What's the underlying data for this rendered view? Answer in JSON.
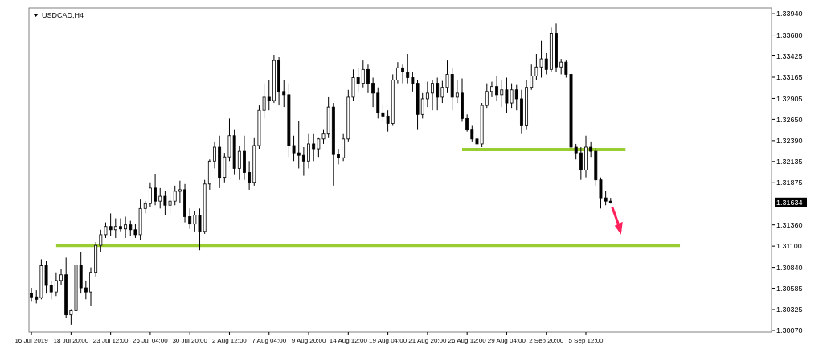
{
  "chart_data": {
    "type": "candlestick",
    "title": "USDCAD,H4",
    "categories": [
      "16 Jul 2019",
      null,
      null,
      null,
      null,
      null,
      null,
      null,
      "18 Jul 20:00",
      null,
      null,
      null,
      null,
      null,
      null,
      null,
      "23 Jul 12:00",
      null,
      null,
      null,
      null,
      null,
      null,
      null,
      "26 Jul 04:00",
      null,
      null,
      null,
      null,
      null,
      null,
      null,
      "30 Jul 20:00",
      null,
      null,
      null,
      null,
      null,
      null,
      null,
      "2 Aug 12:00",
      null,
      null,
      null,
      null,
      null,
      null,
      null,
      "7 Aug 04:00",
      null,
      null,
      null,
      null,
      null,
      null,
      null,
      "9 Aug 20:00",
      null,
      null,
      null,
      null,
      null,
      null,
      null,
      "14 Aug 12:00",
      null,
      null,
      null,
      null,
      null,
      null,
      null,
      "19 Aug 04:00",
      null,
      null,
      null,
      null,
      null,
      null,
      null,
      "21 Aug 20:00",
      null,
      null,
      null,
      null,
      null,
      null,
      null,
      "26 Aug 12:00",
      null,
      null,
      null,
      null,
      null,
      null,
      null,
      "29 Aug 04:00",
      null,
      null,
      null,
      null,
      null,
      null,
      null,
      "2 Sep 20:00",
      null,
      null,
      null,
      null,
      null,
      null,
      null,
      "5 Sep 12:00",
      null,
      null,
      null,
      null,
      null,
      null,
      null,
      null,
      null,
      null,
      null,
      null,
      null,
      null,
      null,
      null,
      null,
      null,
      null,
      null,
      null,
      null,
      null,
      null,
      null,
      null,
      null,
      null,
      null,
      null,
      null,
      null,
      null,
      null,
      null,
      null,
      null
    ],
    "ohlc": [
      [
        1.3052,
        1.3059,
        1.3043,
        1.3048
      ],
      [
        1.3048,
        1.3056,
        1.304,
        1.3045
      ],
      [
        1.3047,
        1.3094,
        1.3045,
        1.3086
      ],
      [
        1.3086,
        1.3092,
        1.3052,
        1.3062
      ],
      [
        1.3062,
        1.3068,
        1.3045,
        1.3054
      ],
      [
        1.3054,
        1.3078,
        1.3049,
        1.3068
      ],
      [
        1.3068,
        1.3082,
        1.3062,
        1.3075
      ],
      [
        1.3075,
        1.3096,
        1.3022,
        1.3026
      ],
      [
        1.3026,
        1.3033,
        1.3014,
        1.3031
      ],
      [
        1.3031,
        1.3092,
        1.3028,
        1.3087
      ],
      [
        1.3087,
        1.3103,
        1.3052,
        1.3059
      ],
      [
        1.3059,
        1.3068,
        1.3045,
        1.3054
      ],
      [
        1.3054,
        1.3084,
        1.3037,
        1.3078
      ],
      [
        1.3078,
        1.3115,
        1.3073,
        1.3111
      ],
      [
        1.3111,
        1.313,
        1.3103,
        1.3124
      ],
      [
        1.3124,
        1.3139,
        1.312,
        1.3134
      ],
      [
        1.3134,
        1.315,
        1.3122,
        1.313
      ],
      [
        1.313,
        1.3144,
        1.312,
        1.3134
      ],
      [
        1.3134,
        1.3144,
        1.3128,
        1.3131
      ],
      [
        1.3131,
        1.3146,
        1.312,
        1.3136
      ],
      [
        1.3136,
        1.3141,
        1.3122,
        1.313
      ],
      [
        1.313,
        1.3137,
        1.312,
        1.3124
      ],
      [
        1.3124,
        1.3167,
        1.3118,
        1.3156
      ],
      [
        1.3156,
        1.3165,
        1.315,
        1.3162
      ],
      [
        1.3162,
        1.3188,
        1.3158,
        1.3181
      ],
      [
        1.3181,
        1.3198,
        1.316,
        1.3165
      ],
      [
        1.3165,
        1.3181,
        1.3156,
        1.3171
      ],
      [
        1.3171,
        1.3177,
        1.3148,
        1.316
      ],
      [
        1.316,
        1.3172,
        1.315,
        1.3165
      ],
      [
        1.3165,
        1.3184,
        1.316,
        1.3177
      ],
      [
        1.3177,
        1.319,
        1.3163,
        1.3179
      ],
      [
        1.3179,
        1.3186,
        1.3139,
        1.3146
      ],
      [
        1.3146,
        1.3156,
        1.3131,
        1.3137
      ],
      [
        1.3137,
        1.3153,
        1.3128,
        1.3148
      ],
      [
        1.3148,
        1.3156,
        1.3105,
        1.3128
      ],
      [
        1.3128,
        1.3191,
        1.3125,
        1.3186
      ],
      [
        1.3186,
        1.3216,
        1.3179,
        1.3214
      ],
      [
        1.3214,
        1.3238,
        1.3205,
        1.3231
      ],
      [
        1.3231,
        1.3245,
        1.3181,
        1.3194
      ],
      [
        1.3194,
        1.3224,
        1.3188,
        1.3219
      ],
      [
        1.3219,
        1.3266,
        1.3214,
        1.3245
      ],
      [
        1.3245,
        1.3252,
        1.3197,
        1.3205
      ],
      [
        1.3205,
        1.3233,
        1.3191,
        1.3226
      ],
      [
        1.3226,
        1.3245,
        1.3191,
        1.32
      ],
      [
        1.32,
        1.3214,
        1.3179,
        1.3188
      ],
      [
        1.3188,
        1.3243,
        1.3184,
        1.3233
      ],
      [
        1.3233,
        1.3282,
        1.3229,
        1.3276
      ],
      [
        1.3276,
        1.3309,
        1.3266,
        1.3292
      ],
      [
        1.3292,
        1.3313,
        1.3276,
        1.3288
      ],
      [
        1.3288,
        1.3344,
        1.3285,
        1.3337
      ],
      [
        1.3337,
        1.3341,
        1.3282,
        1.3299
      ],
      [
        1.3299,
        1.3313,
        1.328,
        1.3295
      ],
      [
        1.3295,
        1.3309,
        1.3219,
        1.3233
      ],
      [
        1.3233,
        1.3245,
        1.3214,
        1.3224
      ],
      [
        1.3224,
        1.3263,
        1.3205,
        1.3221
      ],
      [
        1.3221,
        1.3231,
        1.3196,
        1.3214
      ],
      [
        1.3214,
        1.3247,
        1.3205,
        1.3235
      ],
      [
        1.3235,
        1.3247,
        1.3214,
        1.3229
      ],
      [
        1.3229,
        1.3243,
        1.3219,
        1.3241
      ],
      [
        1.3241,
        1.3252,
        1.3235,
        1.3247
      ],
      [
        1.3247,
        1.3292,
        1.3243,
        1.328
      ],
      [
        1.328,
        1.3285,
        1.3184,
        1.3222
      ],
      [
        1.3222,
        1.3229,
        1.321,
        1.3218
      ],
      [
        1.3218,
        1.3247,
        1.3214,
        1.3241
      ],
      [
        1.3241,
        1.3301,
        1.3238,
        1.3292
      ],
      [
        1.3292,
        1.3326,
        1.3288,
        1.3316
      ],
      [
        1.3316,
        1.3328,
        1.3299,
        1.3309
      ],
      [
        1.3309,
        1.3337,
        1.3304,
        1.3326
      ],
      [
        1.3326,
        1.3332,
        1.3297,
        1.3309
      ],
      [
        1.3309,
        1.3316,
        1.328,
        1.3297
      ],
      [
        1.3297,
        1.3304,
        1.3266,
        1.3273
      ],
      [
        1.3273,
        1.3282,
        1.3262,
        1.3269
      ],
      [
        1.3269,
        1.3276,
        1.325,
        1.326
      ],
      [
        1.326,
        1.332,
        1.3257,
        1.3313
      ],
      [
        1.3313,
        1.3335,
        1.3309,
        1.3328
      ],
      [
        1.3328,
        1.3332,
        1.3309,
        1.3323
      ],
      [
        1.3323,
        1.3345,
        1.3309,
        1.3316
      ],
      [
        1.3316,
        1.3323,
        1.3299,
        1.3309
      ],
      [
        1.3309,
        1.3313,
        1.3252,
        1.3271
      ],
      [
        1.3271,
        1.3297,
        1.3266,
        1.329
      ],
      [
        1.329,
        1.3311,
        1.328,
        1.3297
      ],
      [
        1.3297,
        1.3313,
        1.3276,
        1.3309
      ],
      [
        1.3309,
        1.3316,
        1.3276,
        1.3292
      ],
      [
        1.3292,
        1.3312,
        1.3285,
        1.3304
      ],
      [
        1.3304,
        1.3337,
        1.3297,
        1.332
      ],
      [
        1.332,
        1.3328,
        1.3276,
        1.3292
      ],
      [
        1.3292,
        1.3313,
        1.3285,
        1.3297
      ],
      [
        1.3297,
        1.3315,
        1.3262,
        1.3266
      ],
      [
        1.3266,
        1.3271,
        1.325,
        1.3252
      ],
      [
        1.3252,
        1.3257,
        1.3238,
        1.3241
      ],
      [
        1.3241,
        1.3247,
        1.3224,
        1.3235
      ],
      [
        1.3235,
        1.3285,
        1.3231,
        1.3282
      ],
      [
        1.3282,
        1.3309,
        1.3279,
        1.3299
      ],
      [
        1.3299,
        1.3311,
        1.3292,
        1.3305
      ],
      [
        1.3305,
        1.3318,
        1.3288,
        1.3295
      ],
      [
        1.3295,
        1.3313,
        1.328,
        1.3301
      ],
      [
        1.3301,
        1.3316,
        1.3273,
        1.3285
      ],
      [
        1.3285,
        1.3309,
        1.3279,
        1.3301
      ],
      [
        1.3301,
        1.3307,
        1.3276,
        1.329
      ],
      [
        1.329,
        1.3301,
        1.3247,
        1.3257
      ],
      [
        1.3257,
        1.3313,
        1.3252,
        1.3304
      ],
      [
        1.3304,
        1.3332,
        1.3301,
        1.3318
      ],
      [
        1.3318,
        1.3345,
        1.3313,
        1.3329
      ],
      [
        1.3329,
        1.3361,
        1.3316,
        1.3339
      ],
      [
        1.3339,
        1.3346,
        1.332,
        1.3326
      ],
      [
        1.3326,
        1.3377,
        1.3323,
        1.337
      ],
      [
        1.337,
        1.3382,
        1.3323,
        1.3329
      ],
      [
        1.3329,
        1.3339,
        1.332,
        1.3335
      ],
      [
        1.3335,
        1.3337,
        1.3316,
        1.332
      ],
      [
        1.332,
        1.3323,
        1.3229,
        1.3231
      ],
      [
        1.3231,
        1.3235,
        1.3216,
        1.3224
      ],
      [
        1.3224,
        1.3231,
        1.3191,
        1.3203
      ],
      [
        1.3203,
        1.3245,
        1.3194,
        1.3231
      ],
      [
        1.3231,
        1.3238,
        1.3219,
        1.3226
      ],
      [
        1.3226,
        1.323,
        1.3184,
        1.3191
      ],
      [
        1.3191,
        1.3194,
        1.3156,
        1.3169
      ],
      [
        1.3169,
        1.3177,
        1.316,
        1.3165
      ],
      [
        1.3165,
        1.3169,
        1.3162,
        1.31634
      ],
      null,
      null,
      null,
      null,
      null,
      null,
      null,
      null,
      null,
      null,
      null,
      null,
      null,
      null,
      null,
      null,
      null,
      null,
      null,
      null,
      null,
      null,
      null,
      null,
      null,
      null,
      null,
      null,
      null,
      null,
      null,
      null
    ],
    "series": [
      {
        "type": "line",
        "color": "#9acd32",
        "values": [
          null,
          null,
          null,
          null,
          null,
          1.3111,
          1.3111,
          1.3111,
          1.3111,
          1.3111,
          1.3111,
          1.3111,
          1.3111,
          1.3111,
          1.3111,
          1.3111,
          1.3111,
          1.3111,
          1.3111,
          1.3111,
          1.3111,
          1.3111,
          1.3111,
          1.3111,
          1.3111,
          1.3111,
          1.3111,
          1.3111,
          1.3111,
          1.3111,
          1.3111,
          1.3111,
          1.3111,
          1.3111,
          1.3111,
          1.3111,
          1.3111,
          1.3111,
          1.3111,
          1.3111,
          1.3111,
          1.3111,
          1.3111,
          1.3111,
          1.3111,
          1.3111,
          1.3111,
          1.3111,
          1.3111,
          1.3111,
          1.3111,
          1.3111,
          1.3111,
          1.3111,
          1.3111,
          1.3111,
          1.3111,
          1.3111,
          1.3111,
          1.3111,
          1.3111,
          1.3111,
          1.3111,
          1.3111,
          1.3111,
          1.3111,
          1.3111,
          1.3111,
          1.3111,
          1.3111,
          1.3111,
          1.3111,
          1.3111,
          1.3111,
          1.3111,
          1.3111,
          1.3111,
          1.3111,
          1.3111,
          1.3111,
          1.3111,
          1.3111,
          1.3111,
          1.3111,
          1.3111,
          1.3111,
          1.3111,
          1.3111,
          1.3111,
          1.3111,
          1.3111,
          1.3111,
          1.3111,
          1.3111,
          1.3111,
          1.3111,
          1.3111,
          1.3111,
          1.3111,
          1.3111,
          1.3111,
          1.3111,
          1.3111,
          1.3111,
          1.3111,
          1.3111,
          1.3111,
          1.3111,
          1.3111,
          1.3111,
          1.3111,
          1.3111,
          1.3111,
          1.3111,
          1.3111,
          1.3111,
          1.3111,
          1.3111,
          1.3111,
          1.3111,
          1.3111,
          1.3111,
          1.3111,
          1.3111,
          1.3111,
          1.3111,
          1.3111,
          1.3111,
          1.3111,
          1.3111,
          1.3111,
          1.3111,
          null,
          null,
          null,
          null,
          null,
          null,
          null,
          null,
          null,
          null,
          null,
          null,
          null,
          null,
          null,
          null,
          null,
          null
        ]
      },
      {
        "type": "line",
        "color": "#9acd32",
        "values": [
          null,
          null,
          null,
          null,
          null,
          null,
          null,
          null,
          null,
          null,
          null,
          null,
          null,
          null,
          null,
          null,
          null,
          null,
          null,
          null,
          null,
          null,
          null,
          null,
          null,
          null,
          null,
          null,
          null,
          null,
          null,
          null,
          null,
          null,
          null,
          null,
          null,
          null,
          null,
          null,
          null,
          null,
          null,
          null,
          null,
          null,
          null,
          null,
          null,
          null,
          null,
          null,
          null,
          null,
          null,
          null,
          null,
          null,
          null,
          null,
          null,
          null,
          null,
          null,
          null,
          null,
          null,
          null,
          null,
          null,
          null,
          null,
          null,
          null,
          null,
          null,
          null,
          null,
          null,
          null,
          null,
          null,
          null,
          null,
          null,
          null,
          null,
          1.3228,
          1.3228,
          1.3228,
          1.3228,
          1.3228,
          1.3228,
          1.3228,
          1.3228,
          1.3228,
          1.3228,
          1.3228,
          1.3228,
          1.3228,
          1.3228,
          1.3228,
          1.3228,
          1.3228,
          1.3228,
          1.3228,
          1.3228,
          1.3228,
          1.3228,
          1.3228,
          1.3228,
          1.3228,
          1.3228,
          1.3228,
          1.3228,
          1.3228,
          1.3228,
          1.3228,
          1.3228,
          1.3228,
          1.3228,
          null,
          null,
          null,
          null,
          null,
          null,
          null,
          null,
          null,
          null,
          null,
          null,
          null,
          null,
          null,
          null,
          null,
          null,
          null,
          null,
          null,
          null,
          null,
          null,
          null,
          null,
          null,
          null,
          null
        ]
      }
    ],
    "ylim": [
      1.3005,
      1.3401
    ],
    "yticks": [
      {
        "value": 1.3394,
        "label": "1.33940"
      },
      {
        "value": 1.3368,
        "label": "1.33680"
      },
      {
        "value": 1.33425,
        "label": "1.33425"
      },
      {
        "value": 1.33165,
        "label": "1.33165"
      },
      {
        "value": 1.32905,
        "label": "1.32905"
      },
      {
        "value": 1.3265,
        "label": "1.32650"
      },
      {
        "value": 1.3239,
        "label": "1.32390"
      },
      {
        "value": 1.32135,
        "label": "1.32135"
      },
      {
        "value": 1.31875,
        "label": "1.31875"
      },
      {
        "value": 1.3136,
        "label": "1.31360"
      },
      {
        "value": 1.311,
        "label": "1.31100"
      },
      {
        "value": 1.3084,
        "label": "1.30840"
      },
      {
        "value": 1.30585,
        "label": "1.30585"
      },
      {
        "value": 1.30325,
        "label": "1.30325"
      },
      {
        "value": 1.3007,
        "label": "1.30070"
      }
    ],
    "annotations": [
      "1.31634"
    ],
    "grid": false
  }
}
